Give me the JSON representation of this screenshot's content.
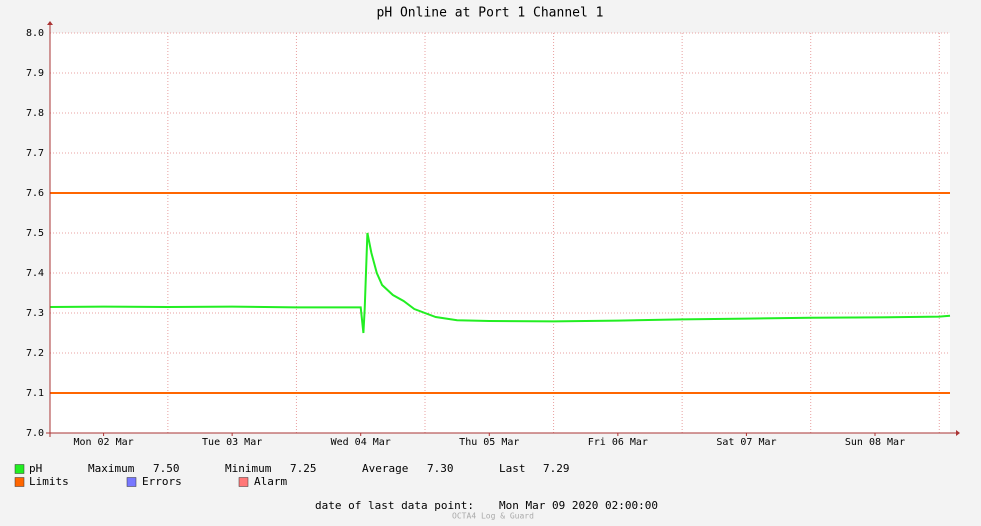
{
  "chart_data": {
    "type": "line",
    "title": "pH Online at Port 1 Channel 1",
    "xlim": [
      "2020-03-02T02:00:00Z",
      "2020-03-09T02:00:00Z"
    ],
    "xticks": [
      {
        "value": "2020-03-02T12:00:00Z",
        "label": "Mon 02 Mar"
      },
      {
        "value": "2020-03-03T12:00:00Z",
        "label": "Tue 03 Mar"
      },
      {
        "value": "2020-03-04T12:00:00Z",
        "label": "Wed 04 Mar"
      },
      {
        "value": "2020-03-05T12:00:00Z",
        "label": "Thu 05 Mar"
      },
      {
        "value": "2020-03-06T12:00:00Z",
        "label": "Fri 06 Mar"
      },
      {
        "value": "2020-03-07T12:00:00Z",
        "label": "Sat 07 Mar"
      },
      {
        "value": "2020-03-08T12:00:00Z",
        "label": "Sun 08 Mar"
      }
    ],
    "xgrid": [
      "2020-03-03T00:00:00Z",
      "2020-03-04T00:00:00Z",
      "2020-03-05T00:00:00Z",
      "2020-03-06T00:00:00Z",
      "2020-03-07T00:00:00Z",
      "2020-03-08T00:00:00Z",
      "2020-03-09T00:00:00Z"
    ],
    "ylim": [
      7,
      8
    ],
    "yticks": [
      {
        "value": 7,
        "label": "7.0"
      },
      7.1,
      7.2,
      7.3,
      7.4,
      7.5,
      7.6,
      7.7,
      7.8,
      7.9,
      {
        "value": 8,
        "label": "8.0"
      }
    ],
    "grid": true,
    "series": [
      {
        "name": "pH",
        "color": "#22ee22",
        "x": [
          "2020-03-02T02:00:00Z",
          "2020-03-02T12:00:00Z",
          "2020-03-03T00:00:00Z",
          "2020-03-03T12:00:00Z",
          "2020-03-04T00:00:00Z",
          "2020-03-04T12:00:00Z",
          "2020-03-04T12:30:00Z",
          "2020-03-04T12:45:00Z",
          "2020-03-04T13:15:00Z",
          "2020-03-04T14:00:00Z",
          "2020-03-04T15:00:00Z",
          "2020-03-04T16:00:00Z",
          "2020-03-04T18:00:00Z",
          "2020-03-04T20:00:00Z",
          "2020-03-04T22:00:00Z",
          "2020-03-05T02:00:00Z",
          "2020-03-05T06:00:00Z",
          "2020-03-05T12:00:00Z",
          "2020-03-06T00:00:00Z",
          "2020-03-06T12:00:00Z",
          "2020-03-07T00:00:00Z",
          "2020-03-07T12:00:00Z",
          "2020-03-08T00:00:00Z",
          "2020-03-08T12:00:00Z",
          "2020-03-09T00:00:00Z",
          "2020-03-09T02:00:00Z"
        ],
        "values": [
          7.315,
          7.316,
          7.315,
          7.316,
          7.314,
          7.314,
          7.25,
          7.31,
          7.5,
          7.45,
          7.4,
          7.37,
          7.345,
          7.33,
          7.31,
          7.29,
          7.282,
          7.28,
          7.279,
          7.281,
          7.284,
          7.286,
          7.288,
          7.289,
          7.291,
          7.293
        ]
      }
    ],
    "limits": {
      "name": "Limits",
      "color": "#ff6600",
      "values": [
        7.1,
        7.6
      ]
    },
    "legend_extra": [
      {
        "name": "Errors",
        "color": "#7777ff"
      },
      {
        "name": "Alarm",
        "color": "#ff7777"
      }
    ],
    "stats": [
      {
        "label": "Maximum",
        "value": 7.5,
        "value_label": "7.50"
      },
      {
        "label": "Minimum",
        "value": 7.25,
        "value_label": "7.25"
      },
      {
        "label": "Average",
        "value": 7.3,
        "value_label": "7.30"
      },
      {
        "label": "Last",
        "value": 7.29,
        "value_label": "7.29"
      }
    ],
    "footer_label": "date of last data point:",
    "footer_value": "Mon Mar 09 2020 02:00:00",
    "watermark": "OCTA4 Log & Guard"
  }
}
